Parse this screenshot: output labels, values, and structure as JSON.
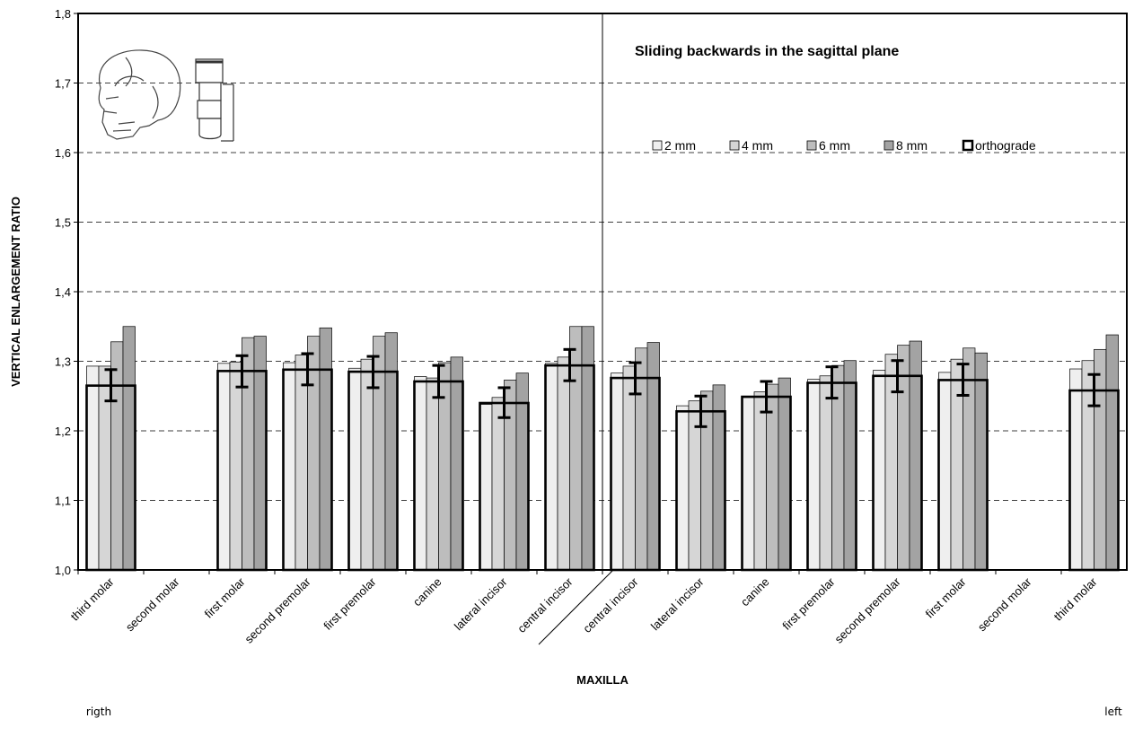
{
  "chart_data": {
    "type": "bar",
    "title": "Sliding backwards in the sagittal plane",
    "xlabel": "MAXILLA",
    "ylabel": "VERTICAL ENLARGEMENT RATIO",
    "ylim": [
      1.0,
      1.8
    ],
    "yticks": [
      "1,0",
      "1,1",
      "1,2",
      "1,3",
      "1,4",
      "1,5",
      "1,6",
      "1,7",
      "1,8"
    ],
    "grid": "horizontal dashed",
    "legend_position": "top-right",
    "side_labels": {
      "left": "rigth",
      "right": "left"
    },
    "categories": [
      "third molar",
      "second molar",
      "first molar",
      "second premolar",
      "first premolar",
      "canine",
      "lateral incisor",
      "central incisor",
      "central incisor",
      "lateral incisor",
      "canine",
      "first premolar",
      "second premolar",
      "first molar",
      "second molar",
      "third molar"
    ],
    "series": [
      {
        "name": "2 mm",
        "color": "#efefef",
        "values": [
          1.293,
          null,
          1.297,
          1.298,
          1.29,
          1.278,
          1.238,
          1.297,
          1.283,
          1.236,
          1.248,
          1.274,
          1.287,
          1.284,
          null,
          1.289
        ]
      },
      {
        "name": "4 mm",
        "color": "#d6d6d6",
        "values": [
          1.293,
          null,
          1.299,
          1.309,
          1.303,
          1.276,
          1.248,
          1.306,
          1.293,
          1.243,
          1.256,
          1.279,
          1.31,
          1.303,
          null,
          1.301
        ]
      },
      {
        "name": "6 mm",
        "color": "#bdbdbd",
        "values": [
          1.328,
          null,
          1.334,
          1.336,
          1.336,
          1.298,
          1.273,
          1.35,
          1.319,
          1.257,
          1.267,
          1.294,
          1.323,
          1.319,
          null,
          1.317
        ]
      },
      {
        "name": "8 mm",
        "color": "#a3a3a3",
        "values": [
          1.35,
          null,
          1.336,
          1.348,
          1.341,
          1.306,
          1.283,
          1.35,
          1.327,
          1.266,
          1.276,
          1.301,
          1.329,
          1.312,
          null,
          1.338
        ]
      }
    ],
    "orthograde": {
      "name": "orthograde",
      "values": [
        1.265,
        null,
        1.286,
        1.288,
        1.285,
        1.271,
        1.24,
        1.294,
        1.276,
        1.228,
        1.249,
        1.269,
        1.279,
        1.273,
        null,
        1.258
      ],
      "error_low": [
        1.243,
        null,
        1.263,
        1.266,
        1.262,
        1.248,
        1.219,
        1.272,
        1.253,
        1.206,
        1.227,
        1.247,
        1.256,
        1.251,
        null,
        1.236
      ],
      "error_high": [
        1.288,
        null,
        1.308,
        1.311,
        1.307,
        1.294,
        1.262,
        1.317,
        1.298,
        1.25,
        1.271,
        1.292,
        1.301,
        1.296,
        null,
        1.281
      ]
    }
  }
}
